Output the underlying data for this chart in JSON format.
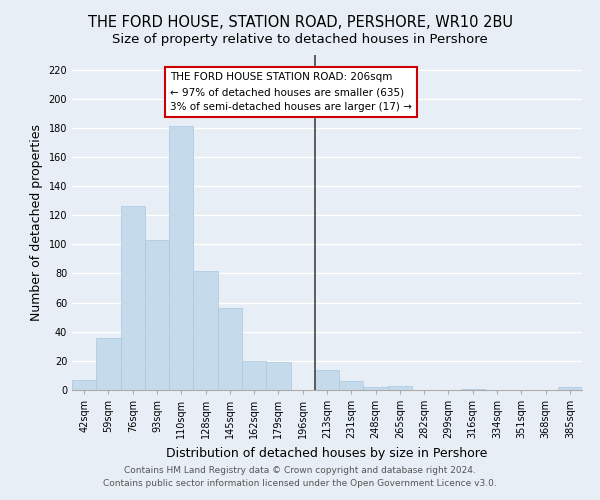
{
  "title": "THE FORD HOUSE, STATION ROAD, PERSHORE, WR10 2BU",
  "subtitle": "Size of property relative to detached houses in Pershore",
  "xlabel": "Distribution of detached houses by size in Pershore",
  "ylabel": "Number of detached properties",
  "categories": [
    "42sqm",
    "59sqm",
    "76sqm",
    "93sqm",
    "110sqm",
    "128sqm",
    "145sqm",
    "162sqm",
    "179sqm",
    "196sqm",
    "213sqm",
    "231sqm",
    "248sqm",
    "265sqm",
    "282sqm",
    "299sqm",
    "316sqm",
    "334sqm",
    "351sqm",
    "368sqm",
    "385sqm"
  ],
  "values": [
    7,
    36,
    126,
    103,
    181,
    82,
    56,
    20,
    19,
    0,
    14,
    6,
    2,
    3,
    0,
    0,
    1,
    0,
    0,
    0,
    2
  ],
  "bar_color": "#c5daea",
  "bar_edge_color": "#a8c8e0",
  "annotation_title": "THE FORD HOUSE STATION ROAD: 206sqm",
  "annotation_line1": "← 97% of detached houses are smaller (635)",
  "annotation_line2": "3% of semi-detached houses are larger (17) →",
  "ylim": [
    0,
    230
  ],
  "footer1": "Contains HM Land Registry data © Crown copyright and database right 2024.",
  "footer2": "Contains public sector information licensed under the Open Government Licence v3.0.",
  "background_color": "#e8eef5",
  "grid_color": "#ffffff",
  "title_fontsize": 10.5,
  "subtitle_fontsize": 9.5,
  "axis_label_fontsize": 9,
  "tick_fontsize": 7,
  "footer_fontsize": 6.5,
  "annotation_fontsize": 7.5,
  "line_color": "#444444",
  "annotation_box_facecolor": "#ffffff",
  "annotation_box_edgecolor": "#cc0000"
}
